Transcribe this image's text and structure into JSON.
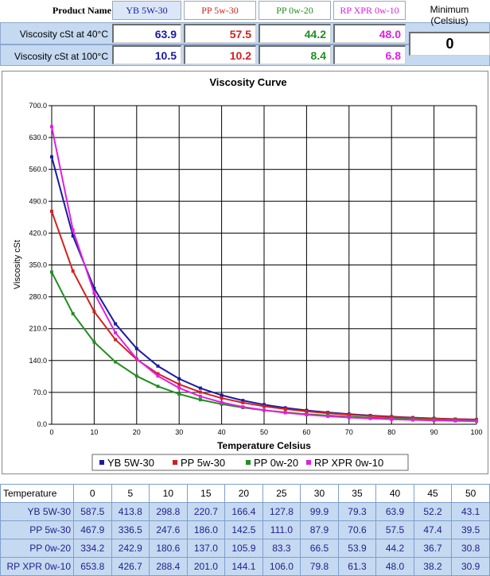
{
  "header": {
    "product_name_label": "Product Name",
    "minimum_label": "Minimum (Celsius)",
    "minimum_value": "0",
    "products": [
      {
        "name": "YB 5W-30",
        "color": "#1a1aa6"
      },
      {
        "name": "PP 5w-30",
        "color": "#d42020"
      },
      {
        "name": "PP 0w-20",
        "color": "#1f8f1f"
      },
      {
        "name": "RP XPR 0w-10",
        "color": "#e020e0"
      }
    ],
    "rows": [
      {
        "label": "Viscosity cSt at 40°C",
        "values": [
          "63.9",
          "57.5",
          "44.2",
          "48.0"
        ]
      },
      {
        "label": "Viscosity cSt at 100°C",
        "values": [
          "10.5",
          "10.2",
          "8.4",
          "6.8"
        ]
      }
    ]
  },
  "chart_data": {
    "type": "line",
    "title": "Viscosity Curve",
    "xlabel": "Temperature Celsius",
    "ylabel": "Viscosity cSt",
    "xlim": [
      0,
      100
    ],
    "ylim": [
      0,
      700
    ],
    "x_ticks": [
      "0",
      "10",
      "20",
      "30",
      "40",
      "50",
      "60",
      "70",
      "80",
      "90",
      "100"
    ],
    "y_ticks": [
      "0.0",
      "70.0",
      "140.0",
      "210.0",
      "280.0",
      "350.0",
      "420.0",
      "490.0",
      "560.0",
      "630.0",
      "700.0"
    ],
    "grid": true,
    "legend_position": "bottom",
    "x": [
      0,
      5,
      10,
      15,
      20,
      25,
      30,
      35,
      40,
      45,
      50,
      55,
      60,
      65,
      70,
      75,
      80,
      85,
      90,
      95,
      100
    ],
    "series": [
      {
        "name": "YB 5W-30",
        "color": "#1a1aa6",
        "values": [
          587.5,
          413.8,
          298.8,
          220.7,
          166.4,
          127.8,
          99.9,
          79.3,
          63.9,
          52.2,
          43.1,
          36.0,
          30.4,
          25.9,
          22.2,
          19.2,
          16.7,
          14.6,
          12.9,
          11.4,
          10.5
        ]
      },
      {
        "name": "PP 5w-30",
        "color": "#d42020",
        "values": [
          467.9,
          336.5,
          247.6,
          186.0,
          142.5,
          111.0,
          87.9,
          70.6,
          57.5,
          47.4,
          39.5,
          33.3,
          28.3,
          24.3,
          21.0,
          18.3,
          16.0,
          14.1,
          12.5,
          11.2,
          10.2
        ]
      },
      {
        "name": "PP 0w-20",
        "color": "#1f8f1f",
        "values": [
          334.2,
          242.9,
          180.6,
          137.0,
          105.9,
          83.3,
          66.5,
          53.9,
          44.2,
          36.7,
          30.8,
          26.1,
          22.3,
          19.2,
          16.6,
          14.5,
          12.8,
          11.3,
          10.1,
          9.1,
          8.4
        ]
      },
      {
        "name": "RP XPR 0w-10",
        "color": "#e020e0",
        "values": [
          653.8,
          426.7,
          288.4,
          201.0,
          144.1,
          106.0,
          79.8,
          61.3,
          48.0,
          38.2,
          30.9,
          25.3,
          21.0,
          17.6,
          14.9,
          12.7,
          10.9,
          9.5,
          8.3,
          7.4,
          6.8
        ]
      }
    ]
  },
  "table": {
    "header_label": "Temperature",
    "temperatures": [
      "0",
      "5",
      "10",
      "15",
      "20",
      "25",
      "30",
      "35",
      "40",
      "45",
      "50"
    ],
    "rows": [
      {
        "label": "YB 5W-30",
        "values": [
          "587.5",
          "413.8",
          "298.8",
          "220.7",
          "166.4",
          "127.8",
          "99.9",
          "79.3",
          "63.9",
          "52.2",
          "43.1"
        ]
      },
      {
        "label": "PP 5w-30",
        "values": [
          "467.9",
          "336.5",
          "247.6",
          "186.0",
          "142.5",
          "111.0",
          "87.9",
          "70.6",
          "57.5",
          "47.4",
          "39.5"
        ]
      },
      {
        "label": "PP 0w-20",
        "values": [
          "334.2",
          "242.9",
          "180.6",
          "137.0",
          "105.9",
          "83.3",
          "66.5",
          "53.9",
          "44.2",
          "36.7",
          "30.8"
        ]
      },
      {
        "label": "RP XPR 0w-10",
        "values": [
          "653.8",
          "426.7",
          "288.4",
          "201.0",
          "144.1",
          "106.0",
          "79.8",
          "61.3",
          "48.0",
          "38.2",
          "30.9"
        ]
      }
    ]
  }
}
